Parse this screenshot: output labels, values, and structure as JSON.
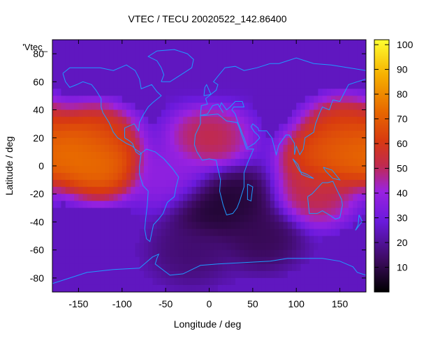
{
  "chart_data": {
    "type": "heatmap",
    "title": "VTEC / TECU 20020522_142.86400",
    "xlabel": "Longitude / deg",
    "ylabel": "Latitude / deg",
    "xlim": [
      -180,
      180
    ],
    "ylim": [
      -90,
      90
    ],
    "xticks": [
      -150,
      -100,
      -50,
      0,
      50,
      100,
      150
    ],
    "yticks": [
      -80,
      -60,
      -40,
      -20,
      0,
      20,
      40,
      60,
      80
    ],
    "zlim": [
      0,
      102
    ],
    "colorbar_ticks": [
      10,
      20,
      30,
      40,
      50,
      60,
      70,
      80,
      90,
      100
    ],
    "legend_entry": "'Vtec_",
    "colormap": "black-purple-red-orange-yellow",
    "features": [
      {
        "lon": -155,
        "lat": 10,
        "value": 80
      },
      {
        "lon": -125,
        "lat": 0,
        "value": 78
      },
      {
        "lon": -130,
        "lat": 20,
        "value": 68
      },
      {
        "lon": 160,
        "lat": 10,
        "value": 78
      },
      {
        "lon": 130,
        "lat": 5,
        "value": 70
      },
      {
        "lon": 155,
        "lat": 25,
        "value": 66
      },
      {
        "lon": 120,
        "lat": -20,
        "value": 55
      },
      {
        "lon": 0,
        "lat": 20,
        "value": 55
      },
      {
        "lon": -40,
        "lat": -10,
        "value": 40
      },
      {
        "lon": 0,
        "lat": -30,
        "value": 5
      },
      {
        "lon": 30,
        "lat": -25,
        "value": 6
      },
      {
        "lon": 60,
        "lat": -50,
        "value": 10
      },
      {
        "lon": -20,
        "lat": -60,
        "value": 14
      },
      {
        "lon": 0,
        "lat": 70,
        "value": 25
      }
    ],
    "background_value": 25,
    "grid": false
  }
}
